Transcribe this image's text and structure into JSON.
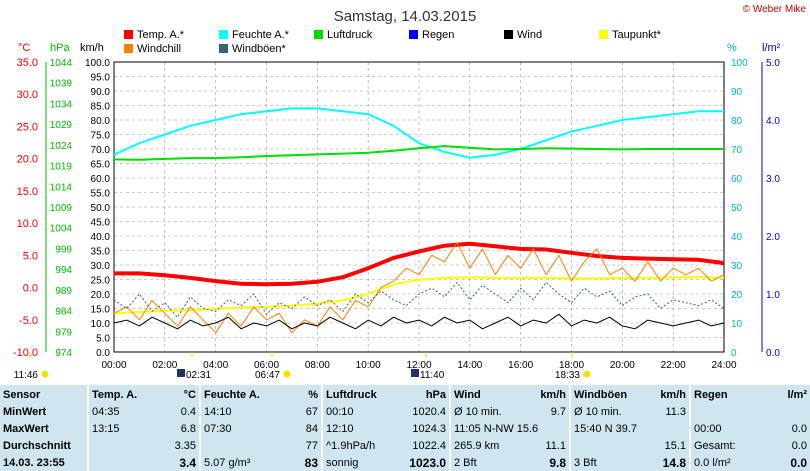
{
  "title": "Samstag, 14.03.2015",
  "copyright": "© Weber Mike",
  "axis_units": {
    "left1": "°C",
    "left2": "hPa",
    "left3": "km/h",
    "right1": "%",
    "right2": "l/m²"
  },
  "legend": [
    {
      "label": "Temp. A.*",
      "color": "#ff0000"
    },
    {
      "label": "Feuchte A.*",
      "color": "#00ffff"
    },
    {
      "label": "Luftdruck",
      "color": "#00dd00"
    },
    {
      "label": "Regen",
      "color": "#0000ff"
    },
    {
      "label": "Wind",
      "color": "#000000"
    },
    {
      "label": "Taupunkt*",
      "color": "#ffff00"
    },
    {
      "label": "Windchill",
      "color": "#ff8000"
    },
    {
      "label": "Windböen*",
      "color": "#336677"
    }
  ],
  "time_markers": [
    {
      "label": "11:46",
      "icon": "sun"
    },
    {
      "label": "02:31",
      "icon": "moon"
    },
    {
      "label": "06:47",
      "icon": "sun"
    },
    {
      "label": "11:40",
      "icon": "moon"
    },
    {
      "label": "18:33",
      "icon": "sun"
    }
  ],
  "chart_data": {
    "type": "line",
    "x_ticks": [
      "00:00",
      "02:00",
      "04:00",
      "06:00",
      "08:00",
      "10:00",
      "12:00",
      "14:00",
      "16:00",
      "18:00",
      "20:00",
      "22:00",
      "24:00"
    ],
    "xlim": [
      0,
      24
    ],
    "axes": {
      "temperature": {
        "unit": "°C",
        "ticks": [
          "35.0",
          "30.0",
          "25.0",
          "20.0",
          "15.0",
          "10.0",
          "5.0",
          "0.0",
          "-5.0",
          "-10.0"
        ],
        "range": [
          -10,
          35
        ]
      },
      "pressure": {
        "unit": "hPa",
        "ticks": [
          "1044",
          "1039",
          "1034",
          "1029",
          "1024",
          "1019",
          "1014",
          "1009",
          "1004",
          "999",
          "994",
          "989",
          "984",
          "979",
          "974"
        ],
        "range": [
          974,
          1044
        ]
      },
      "wind": {
        "unit": "km/h",
        "ticks": [
          "100.0",
          "95.0",
          "90.0",
          "85.0",
          "80.0",
          "75.0",
          "70.0",
          "65.0",
          "60.0",
          "55.0",
          "50.0",
          "45.0",
          "40.0",
          "35.0",
          "30.0",
          "25.0",
          "20.0",
          "15.0",
          "10.0",
          "5.0",
          "0.0"
        ],
        "range": [
          0,
          100
        ]
      },
      "humidity": {
        "unit": "%",
        "ticks": [
          "100",
          "90",
          "80",
          "70",
          "60",
          "50",
          "40",
          "30",
          "20",
          "10",
          "0"
        ],
        "range": [
          0,
          100
        ]
      },
      "rain": {
        "unit": "l/m²",
        "ticks": [
          "5.0",
          "4.0",
          "3.0",
          "2.0",
          "1.0",
          "0.0"
        ],
        "range": [
          0,
          5
        ]
      }
    },
    "series": [
      {
        "name": "Temp. A.*",
        "axis": "temperature",
        "color": "#ff0000",
        "x": [
          0,
          1,
          2,
          3,
          4,
          5,
          6,
          7,
          8,
          9,
          10,
          11,
          12,
          13,
          14,
          15,
          16,
          17,
          18,
          19,
          20,
          21,
          22,
          23,
          24
        ],
        "y": [
          2.2,
          2.2,
          1.9,
          1.5,
          1.0,
          0.6,
          0.5,
          0.6,
          0.9,
          1.6,
          3.0,
          4.6,
          5.6,
          6.5,
          6.8,
          6.4,
          6.0,
          5.9,
          5.4,
          4.9,
          4.6,
          4.5,
          4.4,
          4.3,
          3.8
        ]
      },
      {
        "name": "Feuchte A.*",
        "axis": "humidity",
        "color": "#00ffff",
        "x": [
          0,
          1,
          2,
          3,
          4,
          5,
          6,
          7,
          8,
          9,
          10,
          11,
          12,
          13,
          14,
          15,
          16,
          17,
          18,
          19,
          20,
          21,
          22,
          23,
          24
        ],
        "y": [
          68,
          72,
          75,
          78,
          80,
          82,
          83,
          84,
          84,
          83,
          82,
          78,
          72,
          69,
          67,
          68,
          70,
          73,
          76,
          78,
          80,
          81,
          82,
          83,
          83
        ]
      },
      {
        "name": "Luftdruck",
        "axis": "pressure",
        "color": "#00dd00",
        "x": [
          0,
          1,
          2,
          3,
          4,
          5,
          6,
          7,
          8,
          9,
          10,
          11,
          12,
          13,
          14,
          15,
          16,
          17,
          18,
          19,
          20,
          21,
          22,
          23,
          24
        ],
        "y": [
          1020.5,
          1020.4,
          1020.6,
          1020.8,
          1020.8,
          1021.0,
          1021.3,
          1021.5,
          1021.7,
          1021.9,
          1022.1,
          1022.6,
          1023.2,
          1023.7,
          1023.3,
          1022.9,
          1023.0,
          1023.2,
          1023.1,
          1023.0,
          1022.9,
          1023.0,
          1023.0,
          1023.0,
          1023.0
        ]
      },
      {
        "name": "Taupunkt*",
        "axis": "temperature",
        "color": "#ffff00",
        "x": [
          0,
          1,
          2,
          3,
          4,
          5,
          6,
          7,
          8,
          9,
          10,
          11,
          12,
          13,
          14,
          15,
          16,
          17,
          18,
          19,
          20,
          21,
          22,
          23,
          24
        ],
        "y": [
          -4.0,
          -3.8,
          -3.6,
          -3.5,
          -3.3,
          -3.1,
          -3.0,
          -2.8,
          -2.5,
          -2.0,
          -1.0,
          0.5,
          1.2,
          1.5,
          1.6,
          1.5,
          1.5,
          1.5,
          1.4,
          1.4,
          1.5,
          1.5,
          1.6,
          1.6,
          1.5
        ]
      },
      {
        "name": "Windchill",
        "axis": "temperature",
        "color": "#ff8000",
        "x": [
          0,
          0.5,
          1,
          1.5,
          2,
          2.5,
          3,
          3.5,
          4,
          4.5,
          5,
          5.5,
          6,
          6.5,
          7,
          7.5,
          8,
          8.5,
          9,
          9.5,
          10,
          10.5,
          11,
          11.5,
          12,
          12.5,
          13,
          13.5,
          14,
          14.5,
          15,
          15.5,
          16,
          16.5,
          17,
          17.5,
          18,
          18.5,
          19,
          19.5,
          20,
          20.5,
          21,
          21.5,
          22,
          22.5,
          23,
          23.5,
          24
        ],
        "y": [
          -4,
          -3,
          -5,
          -2,
          -4,
          -6,
          -3,
          -5,
          -7,
          -4,
          -6,
          -3,
          -5,
          -4,
          -7,
          -5,
          -6,
          -3,
          -5,
          -2,
          -3,
          0,
          1,
          3,
          2,
          5,
          4,
          7,
          3,
          6,
          2,
          5,
          3,
          6,
          2,
          5,
          1,
          4,
          6,
          2,
          3,
          1,
          4,
          1,
          3,
          2,
          3,
          1,
          2
        ]
      },
      {
        "name": "Wind",
        "axis": "wind",
        "color": "#000000",
        "x": [
          0,
          0.5,
          1,
          1.5,
          2,
          2.5,
          3,
          3.5,
          4,
          4.5,
          5,
          5.5,
          6,
          6.5,
          7,
          7.5,
          8,
          8.5,
          9,
          9.5,
          10,
          10.5,
          11,
          11.5,
          12,
          12.5,
          13,
          13.5,
          14,
          14.5,
          15,
          15.5,
          16,
          16.5,
          17,
          17.5,
          18,
          18.5,
          19,
          19.5,
          20,
          20.5,
          21,
          21.5,
          22,
          22.5,
          23,
          23.5,
          24
        ],
        "y": [
          10,
          11,
          9,
          12,
          10,
          8,
          11,
          9,
          10,
          12,
          8,
          10,
          9,
          11,
          8,
          10,
          9,
          12,
          10,
          8,
          11,
          9,
          12,
          10,
          11,
          9,
          12,
          10,
          11,
          8,
          10,
          12,
          9,
          11,
          10,
          13,
          9,
          11,
          10,
          12,
          9,
          8,
          11,
          10,
          9,
          10,
          11,
          9,
          10
        ]
      },
      {
        "name": "Windböen*",
        "axis": "wind",
        "color": "#336677",
        "x": [
          0,
          0.5,
          1,
          1.5,
          2,
          2.5,
          3,
          3.5,
          4,
          4.5,
          5,
          5.5,
          6,
          6.5,
          7,
          7.5,
          8,
          8.5,
          9,
          9.5,
          10,
          10.5,
          11,
          11.5,
          12,
          12.5,
          13,
          13.5,
          14,
          14.5,
          15,
          15.5,
          16,
          16.5,
          17,
          17.5,
          18,
          18.5,
          19,
          19.5,
          20,
          20.5,
          21,
          21.5,
          22,
          22.5,
          23,
          23.5,
          24
        ],
        "y": [
          18,
          15,
          20,
          14,
          17,
          12,
          19,
          15,
          14,
          18,
          16,
          20,
          13,
          17,
          15,
          19,
          16,
          18,
          14,
          20,
          17,
          21,
          18,
          16,
          20,
          22,
          19,
          24,
          18,
          23,
          20,
          17,
          22,
          18,
          24,
          20,
          17,
          22,
          19,
          21,
          16,
          19,
          20,
          15,
          18,
          17,
          16,
          18,
          15
        ]
      }
    ]
  },
  "table": {
    "headers": [
      "Sensor",
      "Temp. A.",
      "°C",
      "Feuchte A.",
      "%",
      "Luftdruck",
      "hPa",
      "Wind",
      "km/h",
      "Windböen",
      "km/h",
      "Regen",
      "l/m²"
    ],
    "rows": [
      {
        "label": "MinWert",
        "cells": [
          "04:35",
          "0.4",
          "14:10",
          "67",
          "00:10",
          "1020.4",
          "Ø 10 min.",
          "9.7",
          "Ø 10 min.",
          "11.3",
          "",
          ""
        ]
      },
      {
        "label": "MaxWert",
        "cells": [
          "13:15",
          "6.8",
          "07:30",
          "84",
          "12:10",
          "1024.3",
          "11:05     N-NW 15.6",
          "",
          "15:40     N 39.7",
          "",
          "00:00",
          "0.0"
        ]
      },
      {
        "label": "Durchschnitt",
        "cells": [
          "",
          "3.35",
          "",
          "77",
          "^1.9hPa/h",
          "1022.4",
          "265.9 km",
          "11.1",
          "",
          "15.1",
          "Gesamt:",
          "0.0"
        ]
      },
      {
        "label": "14.03. 23:55",
        "cells": [
          "",
          "3.4",
          "5.07 g/m³",
          "83",
          "sonnig",
          "1023.0",
          "2 Bft",
          "9.8",
          "3 Bft",
          "14.8",
          "0.0 l/m²",
          "0.0"
        ]
      }
    ]
  }
}
